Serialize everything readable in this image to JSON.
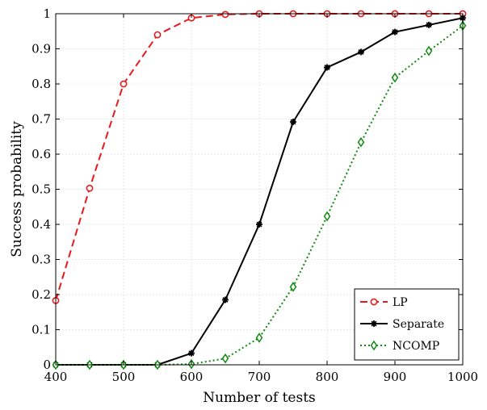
{
  "chart_data": {
    "type": "line",
    "xlabel": "Number of tests",
    "ylabel": "Success probability",
    "xlim": [
      400,
      1000
    ],
    "ylim": [
      0,
      1
    ],
    "x_ticks": [
      400,
      500,
      600,
      700,
      800,
      900,
      1000
    ],
    "y_ticks": [
      0,
      0.1,
      0.2,
      0.3,
      0.4,
      0.5,
      0.6,
      0.7,
      0.8,
      0.9,
      1
    ],
    "grid": true,
    "legend_position": "bottom-right",
    "x": [
      400,
      450,
      500,
      550,
      600,
      650,
      700,
      750,
      800,
      850,
      900,
      950,
      1000
    ],
    "series": [
      {
        "name": "LP",
        "color": "#e8191c",
        "line_style": "dashed",
        "marker": "circle",
        "values": [
          0.183,
          0.503,
          0.8,
          0.94,
          0.988,
          0.998,
          1.0,
          1.0,
          1.0,
          1.0,
          1.0,
          1.0,
          1.0
        ]
      },
      {
        "name": "Separate",
        "color": "#000000",
        "line_style": "solid",
        "marker": "asterisk",
        "values": [
          0,
          0,
          0,
          0,
          0.033,
          0.185,
          0.4,
          0.692,
          0.847,
          0.891,
          0.948,
          0.968,
          0.988
        ]
      },
      {
        "name": "NCOMP",
        "color": "#108a10",
        "line_style": "dotted",
        "marker": "diamond",
        "values": [
          0,
          0,
          0,
          0,
          0.002,
          0.018,
          0.077,
          0.222,
          0.423,
          0.634,
          0.818,
          0.894,
          0.966
        ]
      }
    ]
  }
}
